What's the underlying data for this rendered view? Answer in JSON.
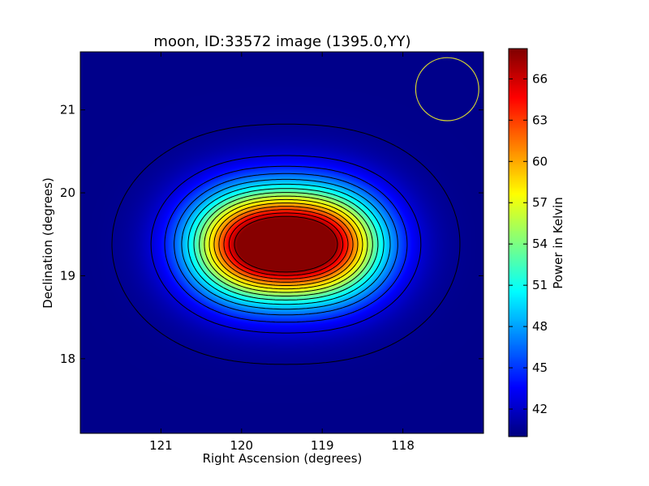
{
  "chart_data": {
    "type": "heatmap",
    "title": "moon, ID:33572 image (1395.0,YY)",
    "xlabel": "Right Ascension (degrees)",
    "ylabel": "Declination (degrees)",
    "xlim": [
      122.0,
      117.0
    ],
    "ylim": [
      17.1,
      21.7
    ],
    "x_ticks": [
      121,
      120,
      119,
      118
    ],
    "y_ticks": [
      18,
      19,
      20,
      21
    ],
    "colorbar": {
      "label": "Power in Kelvin",
      "range": [
        40.0,
        68.2
      ],
      "ticks": [
        42,
        45,
        48,
        51,
        54,
        57,
        60,
        63,
        66
      ],
      "colormap": "jet"
    },
    "peaks": [
      {
        "ra": 119.9,
        "dec": 19.38,
        "value": 68.0
      },
      {
        "ra": 119.0,
        "dec": 19.38,
        "value": 68.0
      }
    ],
    "background_level": 40.3,
    "beam_circle": {
      "ra": 117.45,
      "dec": 21.25,
      "radius_deg": 0.38,
      "color": "#d4d431"
    },
    "contour_color": "#000000",
    "grid": false
  }
}
